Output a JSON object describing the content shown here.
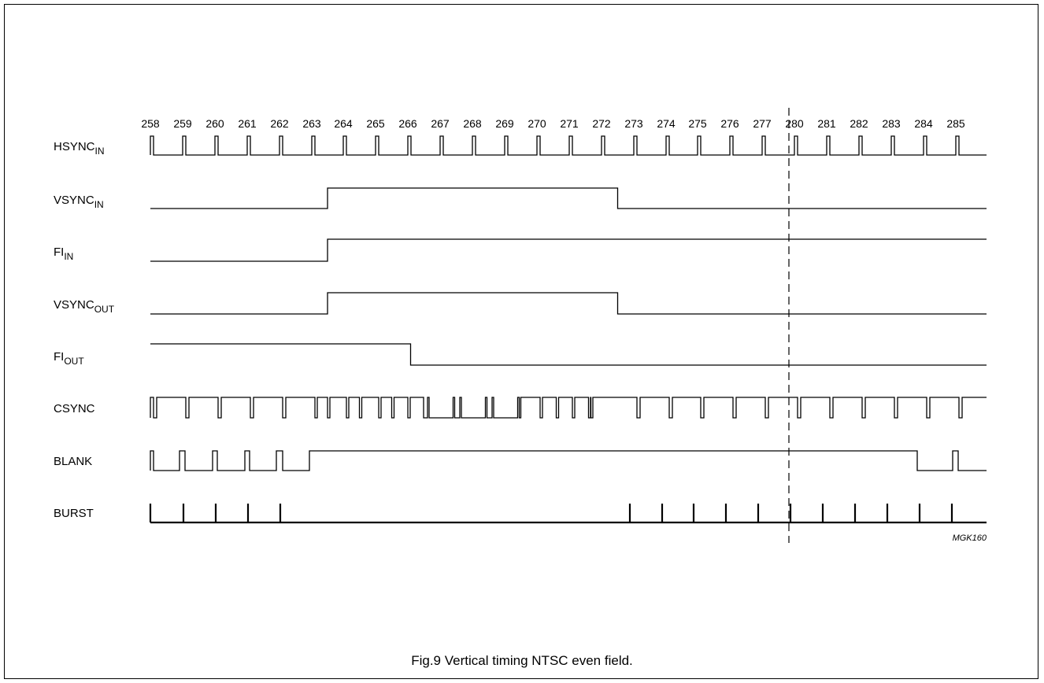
{
  "figure": {
    "caption": "Fig.9  Vertical timing NTSC even field.",
    "code": "MGK160"
  },
  "line_numbers": [
    "258",
    "259",
    "260",
    "261",
    "262",
    "263",
    "264",
    "265",
    "266",
    "267",
    "268",
    "269",
    "270",
    "271",
    "272",
    "273",
    "274",
    "275",
    "276",
    "277",
    "280",
    "281",
    "282",
    "283",
    "284",
    "285"
  ],
  "signals": [
    {
      "id": "hsync-in",
      "name": "HSYNC",
      "sub": "IN"
    },
    {
      "id": "vsync-in",
      "name": "VSYNC",
      "sub": "IN"
    },
    {
      "id": "fi-in",
      "name": "FI",
      "sub": "IN"
    },
    {
      "id": "vsync-out",
      "name": "VSYNC",
      "sub": "OUT"
    },
    {
      "id": "fi-out",
      "name": "FI",
      "sub": "OUT"
    },
    {
      "id": "csync",
      "name": "CSYNC",
      "sub": ""
    },
    {
      "id": "blank",
      "name": "BLANK",
      "sub": ""
    },
    {
      "id": "burst",
      "name": "BURST",
      "sub": ""
    }
  ]
}
